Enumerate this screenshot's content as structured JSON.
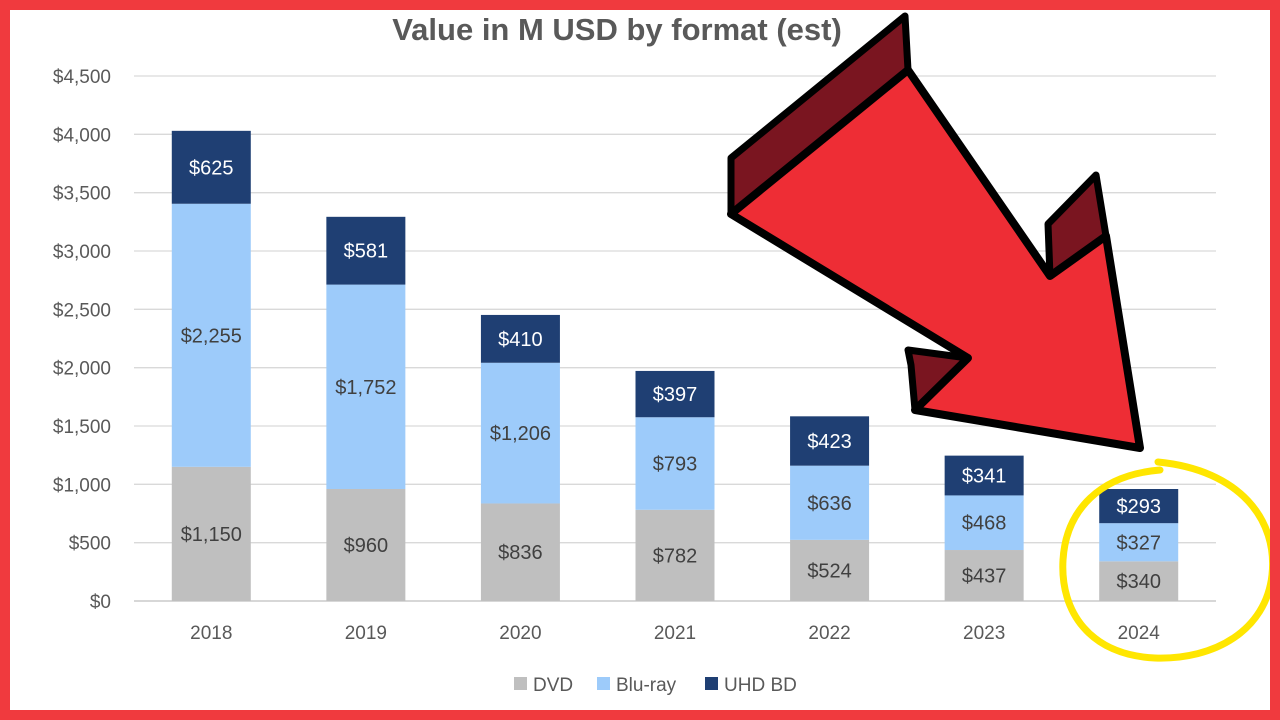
{
  "chart_data": {
    "type": "bar",
    "stacked": true,
    "title": "Value in M USD by format (est)",
    "categories": [
      "2018",
      "2019",
      "2020",
      "2021",
      "2022",
      "2023",
      "2024"
    ],
    "series": [
      {
        "name": "DVD",
        "color": "#bfbfbf",
        "values": [
          1150,
          960,
          836,
          782,
          524,
          437,
          340
        ],
        "labels": [
          "$1,150",
          "$960",
          "$836",
          "$782",
          "$524",
          "$437",
          "$340"
        ],
        "label_color": "#404040"
      },
      {
        "name": "Blu-ray",
        "color": "#9dcbfa",
        "values": [
          2255,
          1752,
          1206,
          793,
          636,
          468,
          327
        ],
        "labels": [
          "$2,255",
          "$1,752",
          "$1,206",
          "$793",
          "$636",
          "$468",
          "$327"
        ],
        "label_color": "#404040"
      },
      {
        "name": "UHD BD",
        "color": "#1f3f73",
        "values": [
          625,
          581,
          410,
          397,
          423,
          341,
          293
        ],
        "labels": [
          "$625",
          "$581",
          "$410",
          "$397",
          "$423",
          "$341",
          "$293"
        ],
        "label_color": "#ffffff"
      }
    ],
    "ylim": [
      0,
      4500
    ],
    "yticks": [
      0,
      500,
      1000,
      1500,
      2000,
      2500,
      3000,
      3500,
      4000,
      4500
    ],
    "ytick_labels": [
      "$0",
      "$500",
      "$1,000",
      "$1,500",
      "$2,000",
      "$2,500",
      "$3,000",
      "$3,500",
      "$4,000",
      "$4,500"
    ],
    "grid": true,
    "legend_position": "bottom"
  },
  "annotations": {
    "arrow": {
      "color": "#ee2d35",
      "shadow_color": "#7a1520",
      "points_to": "2024"
    },
    "highlight_circle": {
      "color": "#ffe600",
      "target": "2024"
    },
    "frame_color": "#f03a3e"
  }
}
